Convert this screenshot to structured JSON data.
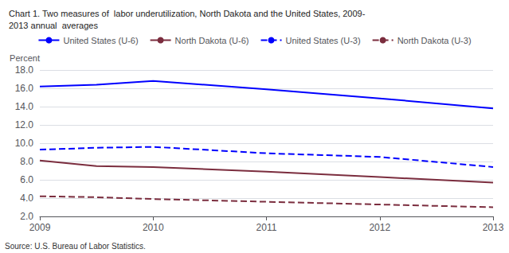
{
  "chart_data": {
    "type": "line",
    "title": "Chart 1. Two measures of  labor underutilization, North Dakota and the United States, 2009-\n2013 annual  averages",
    "ylabel": "Percent",
    "annotations": [
      "Source: U.S. Bureau of Labor Statistics."
    ],
    "x": [
      2009,
      2009.5,
      2010,
      2011,
      2012,
      2013
    ],
    "series": [
      {
        "name": "United States (U-6)",
        "color": "#0000FF",
        "line_style": "solid",
        "values": [
          16.2,
          16.4,
          16.8,
          15.9,
          14.9,
          13.8
        ]
      },
      {
        "name": "North Dakota (U-6)",
        "color": "#7B2D3E",
        "line_style": "solid",
        "values": [
          8.1,
          7.5,
          7.4,
          6.9,
          6.3,
          5.7
        ]
      },
      {
        "name": "United States (U-3)",
        "color": "#0000FF",
        "line_style": "dashed",
        "values": [
          9.3,
          9.5,
          9.6,
          8.9,
          8.5,
          7.4
        ]
      },
      {
        "name": "North Dakota (U-3)",
        "color": "#7B2D3E",
        "line_style": "dashed",
        "values": [
          4.2,
          4.1,
          3.9,
          3.6,
          3.3,
          3.0
        ]
      }
    ],
    "xlim": [
      2009,
      2013
    ],
    "xticks": [
      2009,
      2010,
      2011,
      2012,
      2013
    ],
    "ylim": [
      2.0,
      18.0
    ],
    "yticks": [
      {
        "value": 2.0,
        "label": "2.0"
      },
      {
        "value": 4.0,
        "label": "4.0"
      },
      {
        "value": 6.0,
        "label": "6.0"
      },
      {
        "value": 8.0,
        "label": "8.0"
      },
      {
        "value": 10.0,
        "label": "10.0"
      },
      {
        "value": 12.0,
        "label": "12.0"
      },
      {
        "value": 14.0,
        "label": "14.0"
      },
      {
        "value": 16.0,
        "label": "16.0"
      },
      {
        "value": 18.0,
        "label": "18.0"
      }
    ],
    "grid": true,
    "legend": "top"
  }
}
